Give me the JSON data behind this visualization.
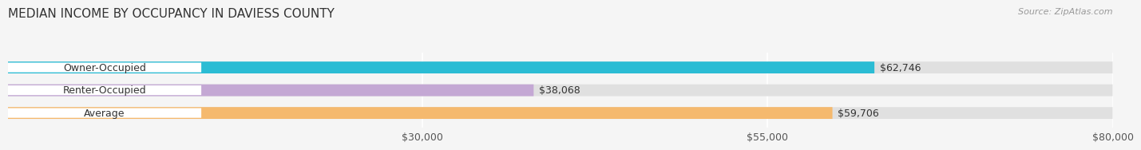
{
  "title": "MEDIAN INCOME BY OCCUPANCY IN DAVIESS COUNTY",
  "source": "Source: ZipAtlas.com",
  "categories": [
    "Owner-Occupied",
    "Renter-Occupied",
    "Average"
  ],
  "values": [
    62746,
    38068,
    59706
  ],
  "bar_colors": [
    "#2bbcd4",
    "#c4a8d4",
    "#f5b96e"
  ],
  "bar_bg_color": "#e0e0e0",
  "value_labels": [
    "$62,746",
    "$38,068",
    "$59,706"
  ],
  "xmin": 0,
  "xmax": 80000,
  "xticks": [
    30000,
    55000,
    80000
  ],
  "xtick_labels": [
    "$30,000",
    "$55,000",
    "$80,000"
  ],
  "title_fontsize": 11,
  "source_fontsize": 8,
  "label_fontsize": 9,
  "value_fontsize": 9,
  "bg_color": "#f5f5f5",
  "bar_height": 0.52,
  "label_bg_color": "#ffffff"
}
